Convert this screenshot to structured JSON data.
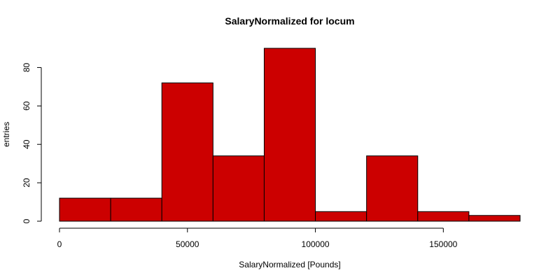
{
  "chart_data": {
    "type": "bar",
    "title": "SalaryNormalized for locum",
    "xlabel": "SalaryNormalized [Pounds]",
    "ylabel": "entries",
    "bin_edges": [
      0,
      20000,
      40000,
      60000,
      80000,
      100000,
      120000,
      140000,
      160000,
      180000
    ],
    "values": [
      12,
      12,
      72,
      34,
      90,
      5,
      34,
      5,
      3
    ],
    "xlim": [
      0,
      180000
    ],
    "ylim": [
      0,
      90
    ],
    "x_ticks": [
      0,
      50000,
      100000,
      150000
    ],
    "x_tick_labels": [
      "0",
      "50000",
      "100000",
      "150000"
    ],
    "y_ticks": [
      0,
      20,
      40,
      60,
      80
    ],
    "y_tick_labels": [
      "0",
      "20",
      "40",
      "60",
      "80"
    ],
    "bar_color": "#cc0000",
    "grid": false,
    "legend": "none"
  }
}
